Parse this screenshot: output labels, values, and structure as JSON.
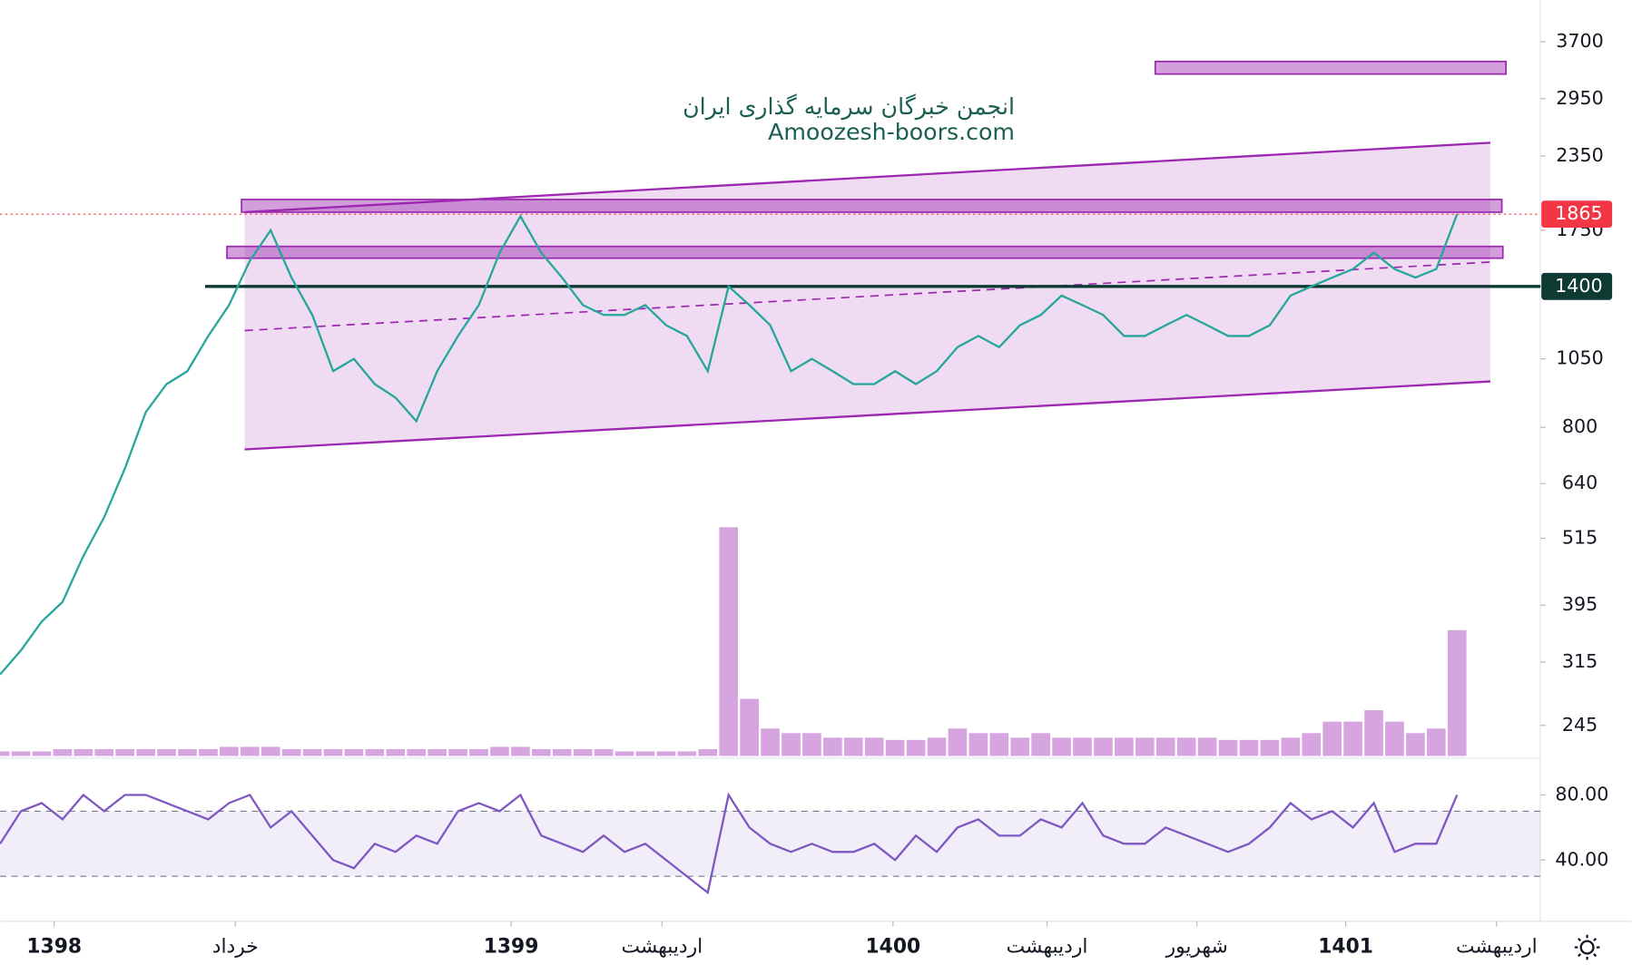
{
  "chart_data": {
    "type": "line",
    "watermark": [
      "انجمن خبرگان سرمایه گذاری ایران",
      "Amoozesh-boors.com"
    ],
    "log_scale": true,
    "xlim": [
      0,
      74
    ],
    "xticks": [
      {
        "value": 2.6,
        "label": "1398"
      },
      {
        "value": 11.3,
        "label": "خرداد"
      },
      {
        "value": 24.55,
        "label": "1399"
      },
      {
        "value": 31.8,
        "label": "اردیبهشت"
      },
      {
        "value": 42.9,
        "label": "1400"
      },
      {
        "value": 50.3,
        "label": "اردیبهشت"
      },
      {
        "value": 57.5,
        "label": "شهریور"
      },
      {
        "value": 64.65,
        "label": "1401"
      },
      {
        "value": 71.9,
        "label": "اردیبهشت"
      }
    ],
    "ylim": [
      217,
      4365
    ],
    "yticks": [
      3700,
      2950,
      2350,
      1750,
      1400,
      1050,
      800,
      640,
      515,
      395,
      315,
      245
    ],
    "series": [
      {
        "name": "close",
        "color": "#26a69a",
        "values": [
          300,
          330,
          370,
          400,
          480,
          560,
          680,
          850,
          950,
          1000,
          1150,
          1300,
          1550,
          1750,
          1450,
          1250,
          1000,
          1050,
          950,
          900,
          820,
          1000,
          1150,
          1300,
          1600,
          1850,
          1600,
          1450,
          1300,
          1250,
          1250,
          1300,
          1200,
          1150,
          1000,
          1400,
          1300,
          1200,
          1000,
          1050,
          1000,
          950,
          950,
          1000,
          950,
          1000,
          1100,
          1150,
          1100,
          1200,
          1250,
          1350,
          1300,
          1250,
          1150,
          1150,
          1200,
          1250,
          1200,
          1150,
          1150,
          1200,
          1350,
          1400,
          1450,
          1500,
          1600,
          1500,
          1450,
          1500,
          1865
        ]
      }
    ],
    "volume": {
      "color": "#ba68c8",
      "values": [
        2,
        2,
        2,
        3,
        3,
        3,
        3,
        3,
        3,
        3,
        3,
        4,
        4,
        4,
        3,
        3,
        3,
        3,
        3,
        3,
        3,
        3,
        3,
        3,
        4,
        4,
        3,
        3,
        3,
        3,
        2,
        2,
        2,
        2,
        3,
        100,
        25,
        12,
        10,
        10,
        8,
        8,
        8,
        7,
        7,
        8,
        12,
        10,
        10,
        8,
        10,
        8,
        8,
        8,
        8,
        8,
        8,
        8,
        8,
        7,
        7,
        7,
        8,
        10,
        15,
        15,
        20,
        15,
        10,
        12,
        55
      ]
    },
    "last_price": {
      "value": 1865,
      "color": "#f23645"
    },
    "level": {
      "value": 1400,
      "color": "#0d3b33"
    },
    "zones": [
      {
        "x": [
          55.5,
          72.35
        ],
        "y": [
          3253,
          3420
        ]
      },
      {
        "x": [
          11.6,
          72.15
        ],
        "y": [
          1880,
          1977
        ]
      },
      {
        "x": [
          10.9,
          72.2
        ],
        "y": [
          1566,
          1641
        ]
      }
    ],
    "channel": {
      "x": [
        11.75,
        71.6
      ],
      "top": [
        1880,
        2477
      ],
      "bottom": [
        733,
        960
      ],
      "color": "#9c27b0"
    },
    "trend_line": {
      "x": [
        11.75,
        71.6
      ],
      "y": [
        1175,
        1542
      ]
    },
    "rsi": {
      "color": "#7e57c2",
      "ylim": [
        3,
        102
      ],
      "yticks": [
        {
          "value": 80,
          "label": "80.00"
        },
        {
          "value": 40,
          "label": "40.00"
        }
      ],
      "bands": [
        30,
        70
      ],
      "values": [
        50,
        70,
        75,
        65,
        80,
        70,
        80,
        80,
        75,
        70,
        65,
        75,
        80,
        60,
        70,
        55,
        40,
        35,
        50,
        45,
        55,
        50,
        70,
        75,
        70,
        80,
        55,
        50,
        45,
        55,
        45,
        50,
        40,
        30,
        20,
        80,
        60,
        50,
        45,
        50,
        45,
        45,
        50,
        40,
        55,
        45,
        60,
        65,
        55,
        55,
        65,
        60,
        75,
        55,
        50,
        50,
        60,
        55,
        50,
        45,
        50,
        60,
        75,
        65,
        70,
        60,
        75,
        45,
        50,
        50,
        80
      ]
    }
  }
}
